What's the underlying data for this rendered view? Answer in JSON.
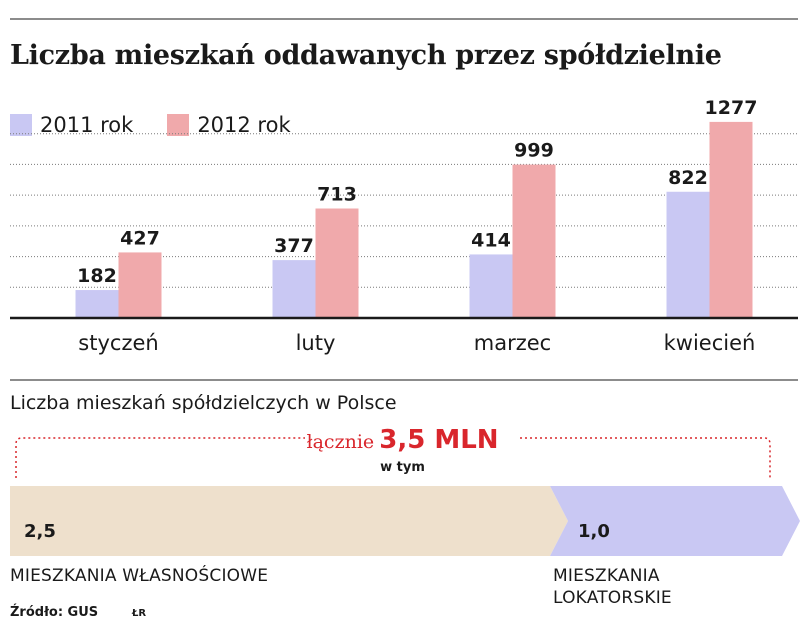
{
  "title": "Liczba mieszkań oddawanych przez spółdzielnie",
  "colors": {
    "y2011": "#c9c8f3",
    "y2012": "#f0a9ab",
    "accent": "#d9262c",
    "own": "#eee0cc",
    "rent": "#c9c8f3",
    "grid": "#7a7a7a"
  },
  "chart_data": {
    "type": "bar",
    "categories": [
      "styczeń",
      "luty",
      "marzec",
      "kwiecień"
    ],
    "series": [
      {
        "name": "2011 rok",
        "values": [
          182,
          377,
          414,
          822
        ]
      },
      {
        "name": "2012 rok",
        "values": [
          427,
          713,
          999,
          1277
        ]
      }
    ],
    "value_labels": [
      [
        "182",
        "377",
        "414",
        "822"
      ],
      [
        "427",
        "713",
        "999",
        "1277"
      ]
    ],
    "ylim": [
      0,
      1400
    ],
    "grid": true,
    "legend": "top-left"
  },
  "breakdown": {
    "subtitle": "Liczba mieszkań spółdzielczych w Polsce",
    "total_label": "łącznie",
    "total_value": "3,5 MLN",
    "in_total": "w tym",
    "own_value": "2,5",
    "rent_value": "1,0",
    "own_label": "MIESZKANIA WŁASNOŚCIOWE",
    "rent_label_1": "MIESZKANIA",
    "rent_label_2": "LOKATORSKIE"
  },
  "source": "Źródło: GUS",
  "initials": "ŁR"
}
